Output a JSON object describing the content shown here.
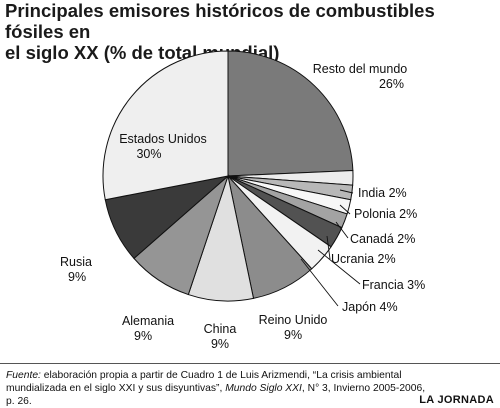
{
  "title_line1": "Principales emisores históricos de combustibles fósiles en",
  "title_line2": "el siglo XX (% de total mundial)",
  "chart_data": {
    "type": "pie",
    "title": "Principales emisores históricos de combustibles fósiles en el siglo XX (% de total mundial)",
    "slices": [
      {
        "label": "Resto del mundo",
        "value": 26,
        "value_text": "26%",
        "color": "#7a7a7a"
      },
      {
        "label": "India",
        "value": 2,
        "value_text": "2%",
        "color": "#ececec"
      },
      {
        "label": "Polonia",
        "value": 2,
        "value_text": "2%",
        "color": "#b8b8b8"
      },
      {
        "label": "Canadá",
        "value": 2,
        "value_text": "2%",
        "color": "#f7f7f7"
      },
      {
        "label": "Ucrania",
        "value": 2,
        "value_text": "2%",
        "color": "#a3a3a3"
      },
      {
        "label": "Francia",
        "value": 3,
        "value_text": "3%",
        "color": "#525252"
      },
      {
        "label": "Japón",
        "value": 4,
        "value_text": "4%",
        "color": "#f2f2f2"
      },
      {
        "label": "Reino Unido",
        "value": 9,
        "value_text": "9%",
        "color": "#8c8c8c"
      },
      {
        "label": "China",
        "value": 9,
        "value_text": "9%",
        "color": "#e0e0e0"
      },
      {
        "label": "Alemania",
        "value": 9,
        "value_text": "9%",
        "color": "#959595"
      },
      {
        "label": "Rusia",
        "value": 9,
        "value_text": "9%",
        "color": "#3a3a3a"
      },
      {
        "label": "Estados Unidos",
        "value": 30,
        "value_text": "30%",
        "color": "#efefef"
      }
    ]
  },
  "source": {
    "label": "Fuente:",
    "text1": " elaboración propia a partir de Cuadro 1 de Luis Arizmendi, “La crisis ambiental mundializada en el siglo XXI y sus disyuntivas”, ",
    "journal": "Mundo Siglo XXI",
    "text2": ", N° 3, Invierno 2005-2006, p. 26."
  },
  "brand": "LA JORNADA"
}
